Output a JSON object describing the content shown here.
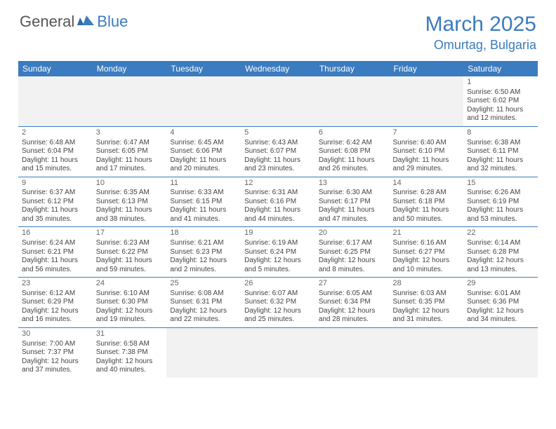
{
  "logo": {
    "general": "General",
    "blue": "Blue"
  },
  "title": "March 2025",
  "location": "Omurtag, Bulgaria",
  "colors": {
    "brand": "#3b7bbf",
    "text": "#444444",
    "header_bg": "#3b7bbf",
    "header_fg": "#ffffff",
    "grid_line": "#3b7bbf",
    "page_bg": "#ffffff",
    "empty_bg": "#f2f2f2"
  },
  "weekdays": [
    "Sunday",
    "Monday",
    "Tuesday",
    "Wednesday",
    "Thursday",
    "Friday",
    "Saturday"
  ],
  "weeks": [
    [
      null,
      null,
      null,
      null,
      null,
      null,
      {
        "n": "1",
        "sr": "Sunrise: 6:50 AM",
        "ss": "Sunset: 6:02 PM",
        "dl": "Daylight: 11 hours and 12 minutes."
      }
    ],
    [
      {
        "n": "2",
        "sr": "Sunrise: 6:48 AM",
        "ss": "Sunset: 6:04 PM",
        "dl": "Daylight: 11 hours and 15 minutes."
      },
      {
        "n": "3",
        "sr": "Sunrise: 6:47 AM",
        "ss": "Sunset: 6:05 PM",
        "dl": "Daylight: 11 hours and 17 minutes."
      },
      {
        "n": "4",
        "sr": "Sunrise: 6:45 AM",
        "ss": "Sunset: 6:06 PM",
        "dl": "Daylight: 11 hours and 20 minutes."
      },
      {
        "n": "5",
        "sr": "Sunrise: 6:43 AM",
        "ss": "Sunset: 6:07 PM",
        "dl": "Daylight: 11 hours and 23 minutes."
      },
      {
        "n": "6",
        "sr": "Sunrise: 6:42 AM",
        "ss": "Sunset: 6:08 PM",
        "dl": "Daylight: 11 hours and 26 minutes."
      },
      {
        "n": "7",
        "sr": "Sunrise: 6:40 AM",
        "ss": "Sunset: 6:10 PM",
        "dl": "Daylight: 11 hours and 29 minutes."
      },
      {
        "n": "8",
        "sr": "Sunrise: 6:38 AM",
        "ss": "Sunset: 6:11 PM",
        "dl": "Daylight: 11 hours and 32 minutes."
      }
    ],
    [
      {
        "n": "9",
        "sr": "Sunrise: 6:37 AM",
        "ss": "Sunset: 6:12 PM",
        "dl": "Daylight: 11 hours and 35 minutes."
      },
      {
        "n": "10",
        "sr": "Sunrise: 6:35 AM",
        "ss": "Sunset: 6:13 PM",
        "dl": "Daylight: 11 hours and 38 minutes."
      },
      {
        "n": "11",
        "sr": "Sunrise: 6:33 AM",
        "ss": "Sunset: 6:15 PM",
        "dl": "Daylight: 11 hours and 41 minutes."
      },
      {
        "n": "12",
        "sr": "Sunrise: 6:31 AM",
        "ss": "Sunset: 6:16 PM",
        "dl": "Daylight: 11 hours and 44 minutes."
      },
      {
        "n": "13",
        "sr": "Sunrise: 6:30 AM",
        "ss": "Sunset: 6:17 PM",
        "dl": "Daylight: 11 hours and 47 minutes."
      },
      {
        "n": "14",
        "sr": "Sunrise: 6:28 AM",
        "ss": "Sunset: 6:18 PM",
        "dl": "Daylight: 11 hours and 50 minutes."
      },
      {
        "n": "15",
        "sr": "Sunrise: 6:26 AM",
        "ss": "Sunset: 6:19 PM",
        "dl": "Daylight: 11 hours and 53 minutes."
      }
    ],
    [
      {
        "n": "16",
        "sr": "Sunrise: 6:24 AM",
        "ss": "Sunset: 6:21 PM",
        "dl": "Daylight: 11 hours and 56 minutes."
      },
      {
        "n": "17",
        "sr": "Sunrise: 6:23 AM",
        "ss": "Sunset: 6:22 PM",
        "dl": "Daylight: 11 hours and 59 minutes."
      },
      {
        "n": "18",
        "sr": "Sunrise: 6:21 AM",
        "ss": "Sunset: 6:23 PM",
        "dl": "Daylight: 12 hours and 2 minutes."
      },
      {
        "n": "19",
        "sr": "Sunrise: 6:19 AM",
        "ss": "Sunset: 6:24 PM",
        "dl": "Daylight: 12 hours and 5 minutes."
      },
      {
        "n": "20",
        "sr": "Sunrise: 6:17 AM",
        "ss": "Sunset: 6:25 PM",
        "dl": "Daylight: 12 hours and 8 minutes."
      },
      {
        "n": "21",
        "sr": "Sunrise: 6:16 AM",
        "ss": "Sunset: 6:27 PM",
        "dl": "Daylight: 12 hours and 10 minutes."
      },
      {
        "n": "22",
        "sr": "Sunrise: 6:14 AM",
        "ss": "Sunset: 6:28 PM",
        "dl": "Daylight: 12 hours and 13 minutes."
      }
    ],
    [
      {
        "n": "23",
        "sr": "Sunrise: 6:12 AM",
        "ss": "Sunset: 6:29 PM",
        "dl": "Daylight: 12 hours and 16 minutes."
      },
      {
        "n": "24",
        "sr": "Sunrise: 6:10 AM",
        "ss": "Sunset: 6:30 PM",
        "dl": "Daylight: 12 hours and 19 minutes."
      },
      {
        "n": "25",
        "sr": "Sunrise: 6:08 AM",
        "ss": "Sunset: 6:31 PM",
        "dl": "Daylight: 12 hours and 22 minutes."
      },
      {
        "n": "26",
        "sr": "Sunrise: 6:07 AM",
        "ss": "Sunset: 6:32 PM",
        "dl": "Daylight: 12 hours and 25 minutes."
      },
      {
        "n": "27",
        "sr": "Sunrise: 6:05 AM",
        "ss": "Sunset: 6:34 PM",
        "dl": "Daylight: 12 hours and 28 minutes."
      },
      {
        "n": "28",
        "sr": "Sunrise: 6:03 AM",
        "ss": "Sunset: 6:35 PM",
        "dl": "Daylight: 12 hours and 31 minutes."
      },
      {
        "n": "29",
        "sr": "Sunrise: 6:01 AM",
        "ss": "Sunset: 6:36 PM",
        "dl": "Daylight: 12 hours and 34 minutes."
      }
    ],
    [
      {
        "n": "30",
        "sr": "Sunrise: 7:00 AM",
        "ss": "Sunset: 7:37 PM",
        "dl": "Daylight: 12 hours and 37 minutes."
      },
      {
        "n": "31",
        "sr": "Sunrise: 6:58 AM",
        "ss": "Sunset: 7:38 PM",
        "dl": "Daylight: 12 hours and 40 minutes."
      },
      null,
      null,
      null,
      null,
      null
    ]
  ]
}
